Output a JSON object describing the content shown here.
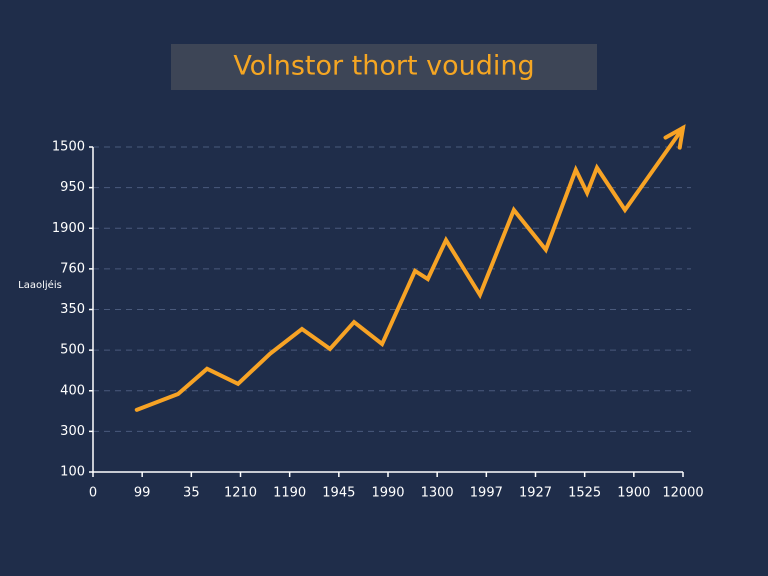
{
  "chart_data": {
    "type": "line",
    "title": "Volnstor thort vouding",
    "y_label": "Laaoljéis",
    "xlim": [
      0,
      12
    ],
    "xticks": [
      {
        "value": 0,
        "label": "0"
      },
      {
        "value": 1,
        "label": "99"
      },
      {
        "value": 2,
        "label": "35"
      },
      {
        "value": 3,
        "label": "1210"
      },
      {
        "value": 4,
        "label": "1190"
      },
      {
        "value": 5,
        "label": "1945"
      },
      {
        "value": 6,
        "label": "1990"
      },
      {
        "value": 7,
        "label": "1300"
      },
      {
        "value": 8,
        "label": "1997"
      },
      {
        "value": 9,
        "label": "1927"
      },
      {
        "value": 10,
        "label": "1525"
      },
      {
        "value": 11,
        "label": "1900"
      },
      {
        "value": 12,
        "label": "12000"
      }
    ],
    "ylim": [
      0,
      8
    ],
    "yticks": [
      {
        "value": 0,
        "label": "100"
      },
      {
        "value": 1,
        "label": "300"
      },
      {
        "value": 2,
        "label": "400"
      },
      {
        "value": 3,
        "label": "500"
      },
      {
        "value": 4,
        "label": "350"
      },
      {
        "value": 5,
        "label": "760"
      },
      {
        "value": 6,
        "label": "1900"
      },
      {
        "value": 7,
        "label": "950"
      },
      {
        "value": 8,
        "label": "1500"
      }
    ],
    "grid": true,
    "series": [
      {
        "color": "#f7a325",
        "x": [
          0.89,
          1.73,
          2.32,
          2.95,
          3.6,
          4.25,
          4.82,
          5.31,
          5.88,
          6.55,
          6.81,
          7.18,
          7.87,
          8.56,
          9.21,
          9.82,
          10.05,
          10.25,
          10.82,
          12.0
        ],
        "values": [
          1.53,
          1.92,
          2.54,
          2.17,
          2.91,
          3.52,
          3.03,
          3.69,
          3.15,
          4.95,
          4.75,
          5.71,
          4.36,
          6.45,
          5.47,
          7.44,
          6.87,
          7.49,
          6.45,
          8.47
        ]
      }
    ]
  }
}
